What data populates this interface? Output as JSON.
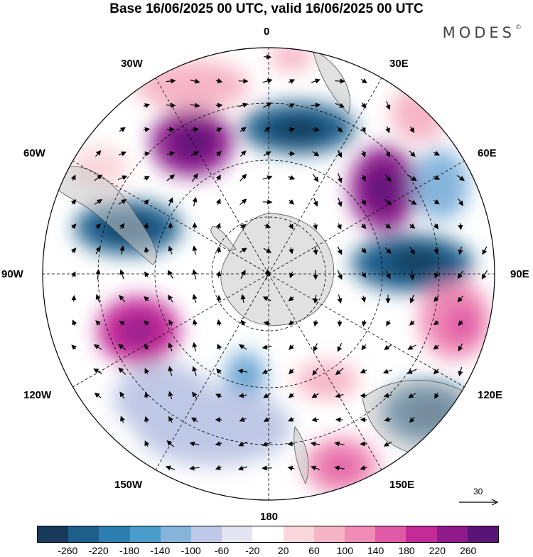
{
  "header": {
    "title": "Base 16/06/2025 00 UTC, valid 16/06/2025 00 UTC",
    "brand": "MODES",
    "brand_mark": "©"
  },
  "map": {
    "lon_labels": [
      "0",
      "30E",
      "60E",
      "90E",
      "120E",
      "150E",
      "180",
      "150W",
      "120W",
      "90W",
      "60W",
      "30W"
    ],
    "reference_vector": {
      "label": "30"
    }
  },
  "colorbar": {
    "colors": [
      "#173a5a",
      "#1f5f8c",
      "#2d7fb2",
      "#4b9dcc",
      "#86b5dc",
      "#bfc8e6",
      "#e4e4f2",
      "#ffffff",
      "#fad7dc",
      "#f6b5c6",
      "#f08cb6",
      "#e05aa8",
      "#c42b98",
      "#8e1a8c",
      "#5a1477"
    ],
    "tick_labels": [
      "-260",
      "-220",
      "-180",
      "-140",
      "-100",
      "-60",
      "-20",
      "20",
      "60",
      "100",
      "140",
      "180",
      "220",
      "260"
    ]
  },
  "colors": {
    "land_outline": "#555555",
    "grid": "#000000"
  }
}
